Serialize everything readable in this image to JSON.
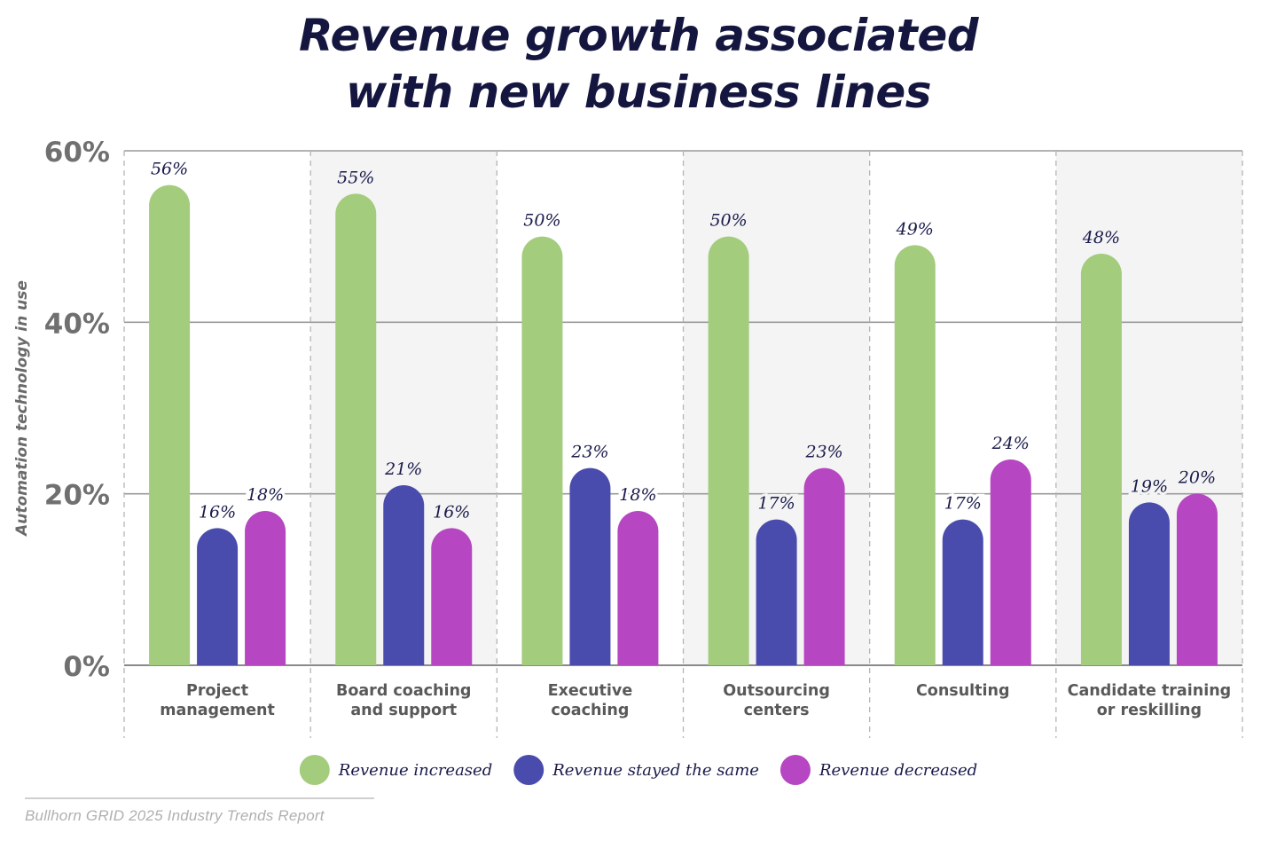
{
  "title_line1": "Revenue growth associated",
  "title_line2": "with new business lines",
  "source": "Bullhorn GRID 2025 Industry Trends Report",
  "chart_data": {
    "type": "bar",
    "title": "Revenue growth associated with new business lines",
    "ylabel": "Automation technology in use",
    "xlabel": "",
    "ylim": [
      0,
      60
    ],
    "yticks": [
      0,
      20,
      40,
      60
    ],
    "ytick_labels": [
      "0%",
      "20%",
      "40%",
      "60%"
    ],
    "categories": [
      [
        "Project",
        "management"
      ],
      [
        "Board coaching",
        "and support"
      ],
      [
        "Executive",
        "coaching"
      ],
      [
        "Outsourcing",
        "centers"
      ],
      [
        "Consulting"
      ],
      [
        "Candidate training",
        "or reskilling"
      ]
    ],
    "series": [
      {
        "name": "Revenue increased",
        "color": "#a3cc7d",
        "values": [
          56,
          55,
          50,
          50,
          49,
          48
        ],
        "labels": [
          "56%",
          "55%",
          "50%",
          "50%",
          "49%",
          "48%"
        ]
      },
      {
        "name": "Revenue stayed the same",
        "color": "#4a4cad",
        "values": [
          16,
          21,
          23,
          17,
          17,
          19
        ],
        "labels": [
          "16%",
          "21%",
          "23%",
          "17%",
          "17%",
          "19%"
        ]
      },
      {
        "name": "Revenue decreased",
        "color": "#b646c1",
        "values": [
          18,
          16,
          18,
          23,
          24,
          20
        ],
        "labels": [
          "18%",
          "16%",
          "18%",
          "23%",
          "24%",
          "20%"
        ]
      }
    ],
    "legend_position": "bottom-center",
    "grid": true
  }
}
